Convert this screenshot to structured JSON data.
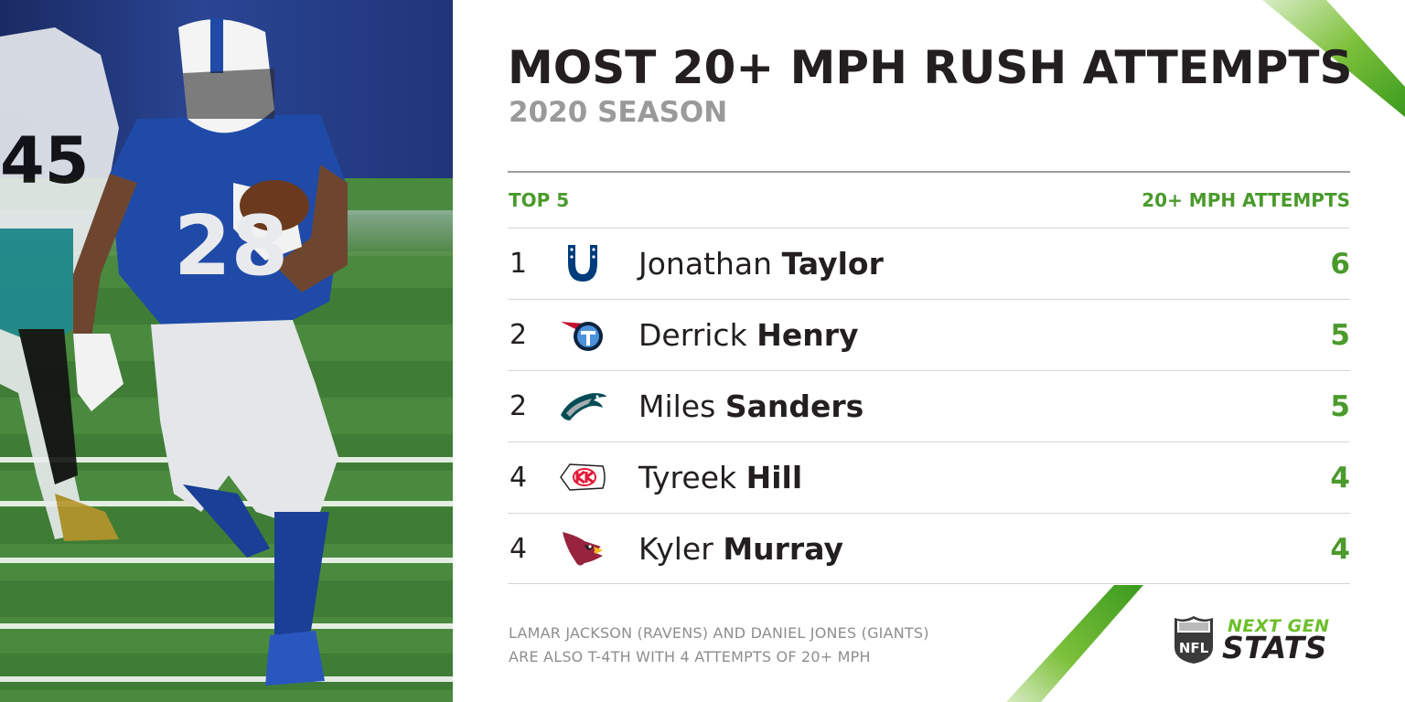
{
  "headline": {
    "title": "MOST 20+ MPH RUSH ATTEMPTS",
    "subtitle": "2020 SEASON"
  },
  "columns": {
    "left": "TOP 5",
    "right": "20+ MPH ATTEMPTS"
  },
  "rows": [
    {
      "rank": "1",
      "team_icon": "colts-horseshoe-icon",
      "first": "Jonathan",
      "last": "Taylor",
      "value": "6"
    },
    {
      "rank": "2",
      "team_icon": "titans-icon",
      "first": "Derrick",
      "last": "Henry",
      "value": "5"
    },
    {
      "rank": "2",
      "team_icon": "eagles-icon",
      "first": "Miles",
      "last": "Sanders",
      "value": "5"
    },
    {
      "rank": "4",
      "team_icon": "chiefs-arrowhead-icon",
      "first": "Tyreek",
      "last": "Hill",
      "value": "4"
    },
    {
      "rank": "4",
      "team_icon": "cardinals-icon",
      "first": "Kyler",
      "last": "Murray",
      "value": "4"
    }
  ],
  "footnote": {
    "line1": "LAMAR JACKSON (RAVENS) AND DANIEL JONES (GIANTS)",
    "line2": "ARE ALSO T-4TH WITH 4 ATTEMPTS OF 20+ MPH"
  },
  "branding": {
    "line1": "NEXT GEN",
    "line2": "STATS"
  },
  "colors": {
    "accent_green": "#4a9a2c",
    "title_dark": "#231f20",
    "subtitle_gray": "#9a9a9a"
  }
}
